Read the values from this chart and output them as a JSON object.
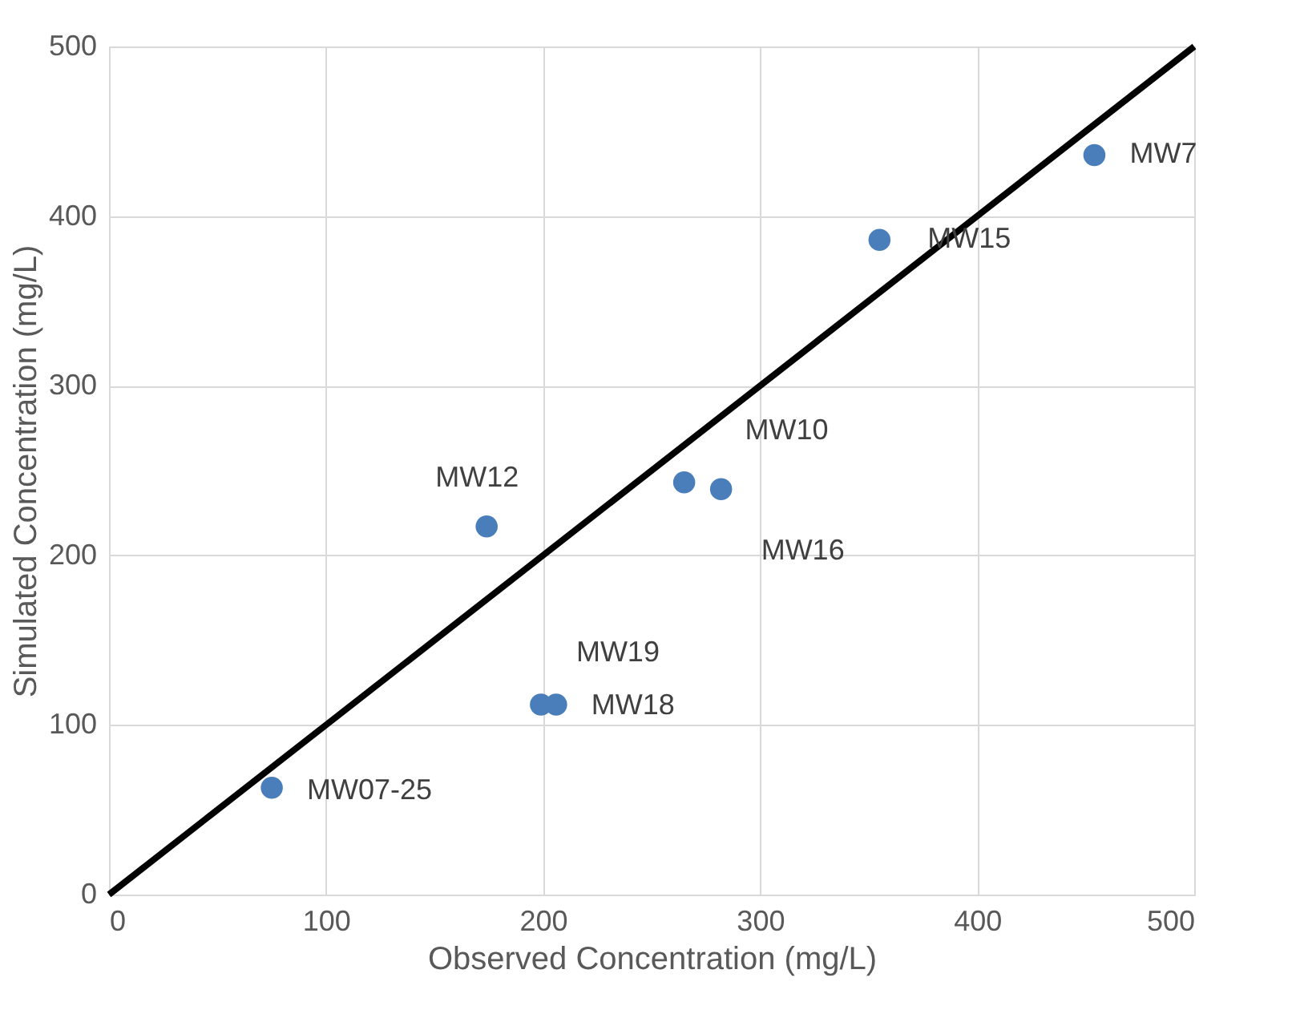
{
  "chart_data": {
    "type": "scatter",
    "xlabel": "Observed Concentration (mg/L)",
    "ylabel": "Simulated Concentration (mg/L)",
    "xlim": [
      0,
      500
    ],
    "ylim": [
      0,
      500
    ],
    "xticks": [
      0,
      100,
      200,
      300,
      400,
      500
    ],
    "yticks": [
      0,
      100,
      200,
      300,
      400,
      500
    ],
    "grid": true,
    "marker": "circle",
    "series": [
      {
        "color": "#4a7ebb",
        "x": [
          75,
          174,
          199,
          206,
          265,
          282,
          355,
          454
        ],
        "values": [
          63,
          217,
          112,
          112,
          243,
          239,
          386,
          436
        ]
      },
      {
        "type": "line",
        "color": "#000000",
        "line_style": "solid",
        "marker": "none",
        "x": [
          0,
          500
        ],
        "values": [
          0,
          500
        ]
      }
    ],
    "annotations": [
      {
        "text": "MW07-25",
        "x": 75,
        "y": 63
      },
      {
        "text": "MW12",
        "x": 174,
        "y": 217
      },
      {
        "text": "MW19",
        "x": 199,
        "y": 112
      },
      {
        "text": "MW18",
        "x": 206,
        "y": 112
      },
      {
        "text": "MW10",
        "x": 265,
        "y": 243
      },
      {
        "text": "MW16",
        "x": 282,
        "y": 239
      },
      {
        "text": "MW15",
        "x": 355,
        "y": 386
      },
      {
        "text": "MW7",
        "x": 454,
        "y": 436
      }
    ]
  }
}
